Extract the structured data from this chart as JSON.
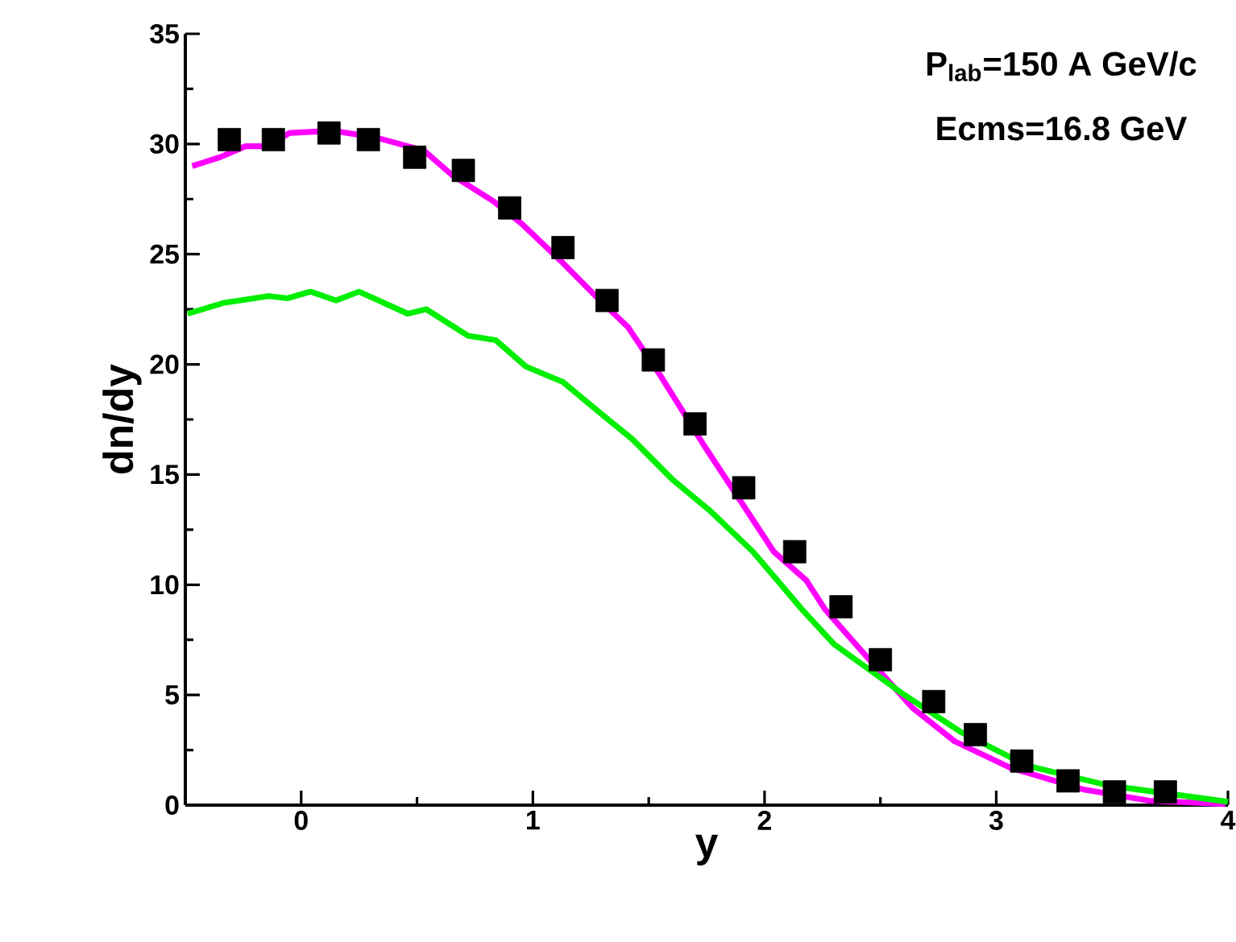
{
  "chart_data": {
    "type": "line",
    "xlabel": "y",
    "ylabel": "dn/dy",
    "annotations": [
      "P$_{lab}$=150 A GeV/c",
      "Ecms=16.8 GeV"
    ],
    "xlim": [
      -0.5,
      4
    ],
    "ylim": [
      0,
      35
    ],
    "xticks": [
      0,
      1,
      2,
      3,
      4
    ],
    "yticks": [
      0,
      5,
      10,
      15,
      20,
      25,
      30,
      35
    ],
    "grid": false,
    "series": [
      {
        "type": "scatter",
        "marker": "square",
        "color": "#000000",
        "x": [
          -0.31,
          -0.12,
          0.12,
          0.29,
          0.49,
          0.7,
          0.9,
          1.13,
          1.32,
          1.52,
          1.7,
          1.91,
          2.13,
          2.33,
          2.5,
          2.73,
          2.91,
          3.11,
          3.31,
          3.51,
          3.73
        ],
        "values": [
          30.2,
          30.2,
          30.5,
          30.2,
          29.4,
          28.8,
          27.1,
          25.3,
          22.9,
          20.2,
          17.3,
          14.4,
          11.5,
          9.0,
          6.6,
          4.7,
          3.2,
          2.0,
          1.1,
          0.6,
          0.6
        ]
      },
      {
        "color": "#ff00ff",
        "x": [
          -0.47,
          -0.35,
          -0.24,
          -0.15,
          -0.05,
          0.14,
          0.32,
          0.53,
          0.65,
          0.83,
          0.95,
          1.13,
          1.29,
          1.41,
          1.55,
          1.74,
          2.04,
          2.18,
          2.26,
          2.41,
          2.64,
          2.82,
          3.06,
          3.38,
          3.66,
          3.99
        ],
        "values": [
          29.0,
          29.4,
          29.9,
          29.9,
          30.5,
          30.6,
          30.3,
          29.7,
          28.6,
          27.4,
          26.4,
          24.6,
          22.9,
          21.7,
          19.5,
          16.3,
          11.5,
          10.2,
          8.9,
          7.1,
          4.4,
          2.9,
          1.7,
          0.7,
          0.2,
          0.05
        ]
      },
      {
        "color": "#00ee00",
        "x": [
          -0.49,
          -0.33,
          -0.14,
          -0.06,
          0.04,
          0.15,
          0.25,
          0.46,
          0.54,
          0.72,
          0.84,
          0.97,
          1.13,
          1.29,
          1.43,
          1.6,
          1.76,
          1.95,
          2.16,
          2.3,
          2.59,
          2.85,
          3.13,
          3.48,
          4.0
        ],
        "values": [
          22.3,
          22.8,
          23.1,
          23.0,
          23.3,
          22.9,
          23.3,
          22.3,
          22.5,
          21.3,
          21.1,
          19.9,
          19.2,
          17.8,
          16.6,
          14.8,
          13.4,
          11.5,
          8.9,
          7.3,
          5.1,
          3.3,
          1.8,
          0.9,
          0.15
        ]
      }
    ]
  }
}
